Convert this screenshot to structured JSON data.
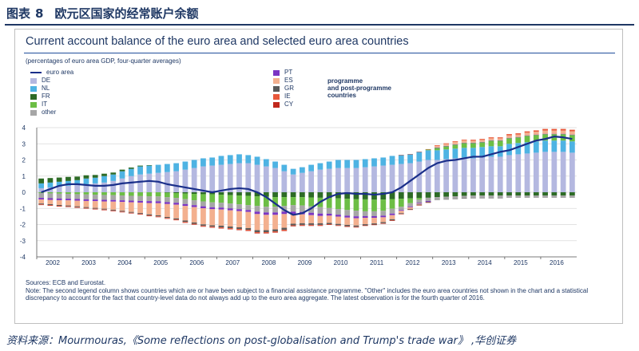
{
  "report": {
    "figure_label": "图表",
    "figure_number": "8",
    "figure_title": "欧元区国家的经常账户余额",
    "source": "资料来源：Mourmouras,《Some reflections on post-globalisation and Trump's trade war》 ,华创证券"
  },
  "chart_data": {
    "type": "bar",
    "stacked": true,
    "title": "Current account balance of the euro area and selected euro area countries",
    "subtitle": "(percentages of euro area GDP, four-quarter averages)",
    "ylim": [
      -4,
      4
    ],
    "yticks": [
      -4,
      -3,
      -2,
      -1,
      0,
      1,
      2,
      3,
      4
    ],
    "xlim": [
      2002,
      2017
    ],
    "xticks": [
      "2002",
      "2003",
      "2004",
      "2005",
      "2006",
      "2007",
      "2008",
      "2009",
      "2010",
      "2011",
      "2012",
      "2013",
      "2014",
      "2015",
      "2016"
    ],
    "grid": true,
    "legend_group_label": "programme and post-programme countries",
    "quarters_x": [
      2002.0,
      2002.25,
      2002.5,
      2002.75,
      2003.0,
      2003.25,
      2003.5,
      2003.75,
      2004.0,
      2004.25,
      2004.5,
      2004.75,
      2005.0,
      2005.25,
      2005.5,
      2005.75,
      2006.0,
      2006.25,
      2006.5,
      2006.75,
      2007.0,
      2007.25,
      2007.5,
      2007.75,
      2008.0,
      2008.25,
      2008.5,
      2008.75,
      2009.0,
      2009.25,
      2009.5,
      2009.75,
      2010.0,
      2010.25,
      2010.5,
      2010.75,
      2011.0,
      2011.25,
      2011.5,
      2011.75,
      2012.0,
      2012.25,
      2012.5,
      2012.75,
      2013.0,
      2013.25,
      2013.5,
      2013.75,
      2014.0,
      2014.25,
      2014.5,
      2014.75,
      2015.0,
      2015.25,
      2015.5,
      2015.75,
      2016.0,
      2016.25,
      2016.5,
      2016.75
    ],
    "series": [
      {
        "name": "DE",
        "color": "#b4b8e0",
        "values": [
          0.25,
          0.3,
          0.35,
          0.4,
          0.45,
          0.5,
          0.55,
          0.6,
          0.7,
          0.85,
          1.0,
          1.1,
          1.15,
          1.2,
          1.25,
          1.3,
          1.4,
          1.5,
          1.6,
          1.65,
          1.7,
          1.75,
          1.8,
          1.8,
          1.7,
          1.6,
          1.5,
          1.3,
          1.1,
          1.2,
          1.3,
          1.4,
          1.45,
          1.5,
          1.5,
          1.5,
          1.55,
          1.6,
          1.65,
          1.7,
          1.75,
          1.8,
          1.9,
          2.0,
          2.0,
          2.05,
          2.1,
          2.15,
          2.1,
          2.15,
          2.2,
          2.2,
          2.3,
          2.35,
          2.4,
          2.45,
          2.5,
          2.5,
          2.5,
          2.45
        ]
      },
      {
        "name": "NL",
        "color": "#4eb3e3",
        "values": [
          0.3,
          0.3,
          0.3,
          0.3,
          0.3,
          0.35,
          0.35,
          0.4,
          0.4,
          0.45,
          0.45,
          0.5,
          0.5,
          0.5,
          0.5,
          0.5,
          0.5,
          0.5,
          0.5,
          0.5,
          0.55,
          0.55,
          0.55,
          0.5,
          0.5,
          0.45,
          0.4,
          0.4,
          0.35,
          0.35,
          0.4,
          0.4,
          0.45,
          0.5,
          0.5,
          0.5,
          0.5,
          0.5,
          0.5,
          0.55,
          0.55,
          0.55,
          0.6,
          0.6,
          0.6,
          0.6,
          0.6,
          0.6,
          0.65,
          0.65,
          0.65,
          0.65,
          0.7,
          0.7,
          0.7,
          0.7,
          0.7,
          0.7,
          0.7,
          0.7
        ]
      },
      {
        "name": "FR",
        "color": "#2d6b26",
        "values": [
          0.3,
          0.28,
          0.26,
          0.25,
          0.22,
          0.2,
          0.17,
          0.15,
          0.12,
          0.1,
          0.08,
          0.05,
          0.03,
          0.0,
          -0.03,
          -0.05,
          -0.08,
          -0.1,
          -0.12,
          -0.13,
          -0.15,
          -0.18,
          -0.2,
          -0.22,
          -0.25,
          -0.28,
          -0.3,
          -0.3,
          -0.3,
          -0.3,
          -0.32,
          -0.34,
          -0.36,
          -0.38,
          -0.4,
          -0.42,
          -0.44,
          -0.46,
          -0.45,
          -0.42,
          -0.4,
          -0.38,
          -0.36,
          -0.34,
          -0.3,
          -0.28,
          -0.25,
          -0.22,
          -0.2,
          -0.2,
          -0.2,
          -0.2,
          -0.2,
          -0.2,
          -0.2,
          -0.2,
          -0.2,
          -0.2,
          -0.2,
          -0.2
        ]
      },
      {
        "name": "IT",
        "color": "#6cbe45",
        "values": [
          -0.05,
          -0.07,
          -0.09,
          -0.1,
          -0.12,
          -0.14,
          -0.15,
          -0.17,
          -0.18,
          -0.2,
          -0.22,
          -0.24,
          -0.25,
          -0.26,
          -0.28,
          -0.3,
          -0.35,
          -0.4,
          -0.45,
          -0.5,
          -0.5,
          -0.52,
          -0.55,
          -0.58,
          -0.6,
          -0.62,
          -0.6,
          -0.55,
          -0.5,
          -0.52,
          -0.55,
          -0.58,
          -0.62,
          -0.66,
          -0.7,
          -0.72,
          -0.74,
          -0.72,
          -0.7,
          -0.6,
          -0.5,
          -0.3,
          -0.1,
          0.05,
          0.15,
          0.2,
          0.25,
          0.3,
          0.3,
          0.3,
          0.35,
          0.35,
          0.35,
          0.35,
          0.4,
          0.4,
          0.4,
          0.4,
          0.4,
          0.4
        ]
      },
      {
        "name": "other",
        "color": "#a6a6a6",
        "values": [
          -0.3,
          -0.3,
          -0.3,
          -0.3,
          -0.3,
          -0.3,
          -0.3,
          -0.3,
          -0.3,
          -0.3,
          -0.3,
          -0.3,
          -0.3,
          -0.3,
          -0.3,
          -0.3,
          -0.3,
          -0.3,
          -0.3,
          -0.3,
          -0.3,
          -0.3,
          -0.3,
          -0.3,
          -0.35,
          -0.35,
          -0.35,
          -0.35,
          -0.4,
          -0.4,
          -0.4,
          -0.4,
          -0.35,
          -0.35,
          -0.35,
          -0.35,
          -0.3,
          -0.3,
          -0.3,
          -0.3,
          -0.2,
          -0.2,
          -0.2,
          -0.2,
          -0.15,
          -0.15,
          -0.15,
          -0.15,
          -0.15,
          -0.15,
          -0.15,
          -0.15,
          -0.1,
          -0.1,
          -0.1,
          -0.1,
          -0.1,
          -0.1,
          -0.1,
          -0.1
        ]
      },
      {
        "name": "PT",
        "color": "#7b35c4",
        "values": [
          -0.1,
          -0.1,
          -0.1,
          -0.1,
          -0.1,
          -0.1,
          -0.1,
          -0.1,
          -0.1,
          -0.1,
          -0.1,
          -0.1,
          -0.12,
          -0.12,
          -0.12,
          -0.12,
          -0.12,
          -0.12,
          -0.12,
          -0.12,
          -0.12,
          -0.12,
          -0.12,
          -0.12,
          -0.15,
          -0.15,
          -0.15,
          -0.15,
          -0.15,
          -0.15,
          -0.15,
          -0.15,
          -0.12,
          -0.12,
          -0.12,
          -0.12,
          -0.1,
          -0.1,
          -0.1,
          -0.1,
          -0.05,
          -0.05,
          -0.05,
          -0.05,
          0.02,
          0.02,
          0.02,
          0.02,
          0.02,
          0.02,
          0.02,
          0.02,
          0.02,
          0.02,
          0.02,
          0.02,
          0.02,
          0.02,
          0.02,
          0.02
        ]
      },
      {
        "name": "ES",
        "color": "#f3b08f",
        "values": [
          -0.25,
          -0.27,
          -0.3,
          -0.32,
          -0.35,
          -0.38,
          -0.42,
          -0.45,
          -0.5,
          -0.55,
          -0.6,
          -0.65,
          -0.7,
          -0.75,
          -0.8,
          -0.85,
          -0.9,
          -0.95,
          -1.0,
          -1.0,
          -1.0,
          -1.0,
          -1.0,
          -1.0,
          -1.0,
          -0.95,
          -0.9,
          -0.85,
          -0.6,
          -0.55,
          -0.5,
          -0.45,
          -0.45,
          -0.45,
          -0.45,
          -0.45,
          -0.4,
          -0.35,
          -0.3,
          -0.25,
          -0.15,
          -0.1,
          -0.05,
          0.0,
          0.1,
          0.12,
          0.15,
          0.15,
          0.12,
          0.12,
          0.12,
          0.12,
          0.15,
          0.15,
          0.17,
          0.18,
          0.2,
          0.2,
          0.2,
          0.2
        ]
      },
      {
        "name": "GR",
        "color": "#5a5a5a",
        "values": [
          -0.05,
          -0.05,
          -0.05,
          -0.05,
          -0.05,
          -0.05,
          -0.05,
          -0.05,
          -0.05,
          -0.05,
          -0.05,
          -0.05,
          -0.06,
          -0.06,
          -0.06,
          -0.06,
          -0.08,
          -0.08,
          -0.08,
          -0.08,
          -0.1,
          -0.1,
          -0.1,
          -0.1,
          -0.12,
          -0.12,
          -0.12,
          -0.12,
          -0.1,
          -0.1,
          -0.1,
          -0.1,
          -0.08,
          -0.08,
          -0.08,
          -0.08,
          -0.07,
          -0.07,
          -0.07,
          -0.07,
          -0.04,
          -0.04,
          -0.04,
          -0.04,
          -0.01,
          -0.01,
          -0.01,
          -0.01,
          -0.01,
          -0.01,
          -0.01,
          -0.01,
          -0.01,
          -0.01,
          -0.01,
          -0.01,
          -0.01,
          -0.01,
          -0.01,
          -0.01
        ]
      },
      {
        "name": "IE",
        "color": "#e8583a",
        "values": [
          -0.02,
          -0.02,
          -0.02,
          -0.02,
          -0.02,
          -0.02,
          -0.02,
          -0.02,
          -0.02,
          -0.02,
          -0.02,
          -0.02,
          -0.03,
          -0.03,
          -0.03,
          -0.03,
          -0.04,
          -0.04,
          -0.04,
          -0.04,
          -0.05,
          -0.05,
          -0.05,
          -0.05,
          -0.06,
          -0.06,
          -0.06,
          -0.06,
          -0.04,
          -0.04,
          -0.04,
          -0.04,
          -0.02,
          -0.02,
          -0.02,
          -0.02,
          -0.01,
          -0.01,
          -0.01,
          -0.01,
          0.02,
          0.02,
          0.02,
          0.02,
          0.04,
          0.04,
          0.04,
          0.04,
          0.06,
          0.06,
          0.06,
          0.06,
          0.08,
          0.08,
          0.08,
          0.08,
          0.1,
          0.1,
          0.1,
          0.1
        ]
      },
      {
        "name": "CY",
        "color": "#c0281c",
        "values": [
          -0.01,
          -0.01,
          -0.01,
          -0.01,
          -0.01,
          -0.01,
          -0.01,
          -0.01,
          -0.01,
          -0.01,
          -0.01,
          -0.01,
          -0.01,
          -0.01,
          -0.01,
          -0.01,
          -0.01,
          -0.01,
          -0.01,
          -0.01,
          -0.02,
          -0.02,
          -0.02,
          -0.02,
          -0.02,
          -0.02,
          -0.02,
          -0.02,
          -0.02,
          -0.02,
          -0.02,
          -0.02,
          -0.01,
          -0.01,
          -0.01,
          -0.01,
          -0.01,
          -0.01,
          -0.01,
          -0.01,
          -0.01,
          -0.01,
          -0.01,
          -0.01,
          0.0,
          0.0,
          0.0,
          0.0,
          0.0,
          0.0,
          0.0,
          0.0,
          0.0,
          0.0,
          0.0,
          0.0,
          0.0,
          0.0,
          0.0,
          0.0
        ]
      }
    ],
    "line": {
      "name": "euro area",
      "color": "#1a2f8a",
      "values": [
        0.0,
        0.2,
        0.4,
        0.5,
        0.5,
        0.45,
        0.4,
        0.4,
        0.45,
        0.55,
        0.6,
        0.65,
        0.7,
        0.65,
        0.5,
        0.4,
        0.3,
        0.2,
        0.1,
        0.0,
        0.1,
        0.2,
        0.25,
        0.2,
        0.0,
        -0.3,
        -0.7,
        -1.1,
        -1.4,
        -1.3,
        -1.0,
        -0.6,
        -0.3,
        -0.1,
        -0.05,
        -0.1,
        -0.1,
        -0.15,
        -0.1,
        0.0,
        0.3,
        0.7,
        1.1,
        1.5,
        1.8,
        1.95,
        2.0,
        2.1,
        2.2,
        2.2,
        2.35,
        2.5,
        2.6,
        2.8,
        3.0,
        3.2,
        3.3,
        3.45,
        3.4,
        3.3
      ]
    }
  },
  "legend_left": [
    "euro area",
    "DE",
    "NL",
    "FR",
    "IT",
    "other"
  ],
  "legend_right": [
    "PT",
    "ES",
    "GR",
    "IE",
    "CY"
  ],
  "legend_group": [
    "programme",
    "and post-programme",
    "countries"
  ],
  "footnote": {
    "sources": "Sources: ECB and Eurostat.",
    "note": "Note: The second legend column shows countries which are or have been subject to a financial assistance programme. \"Other\" includes the euro area countries not shown in the chart and a statistical discrepancy to account for the fact that country-level data do not always add up to the euro area aggregate. The latest observation is for the fourth quarter of 2016."
  }
}
